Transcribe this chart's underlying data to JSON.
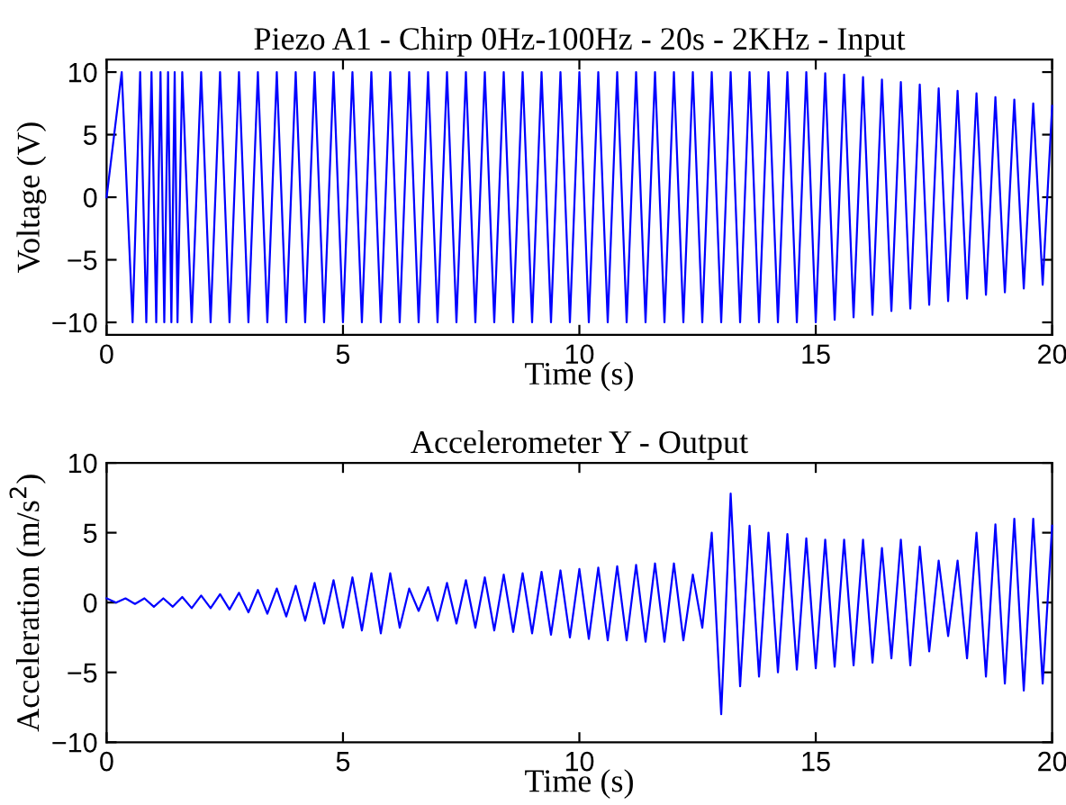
{
  "chart_data": [
    {
      "type": "line",
      "title": "Piezo A1 - Chirp 0Hz-100Hz - 20s - 2KHz - Input",
      "xlabel": "Time (s)",
      "ylabel": "Voltage (V)",
      "xlim": [
        0,
        20
      ],
      "xticks": [
        0,
        5,
        10,
        15,
        20
      ],
      "ylim": [
        -11,
        11
      ],
      "yticks": [
        -10,
        -5,
        0,
        5,
        10
      ],
      "grid": false,
      "legend": false,
      "series": [
        {
          "color": "#0000ff",
          "x": [
            0,
            0.32,
            0.55,
            0.71,
            0.84,
            0.95,
            1.05,
            1.14,
            1.22,
            1.3,
            1.37,
            1.44,
            1.5,
            1.6,
            1.8,
            2.0,
            2.2,
            2.4,
            2.6,
            2.8,
            3.0,
            3.2,
            3.4,
            3.6,
            3.8,
            4.0,
            4.2,
            4.4,
            4.6,
            4.8,
            5.0,
            5.2,
            5.4,
            5.6,
            5.8,
            6.0,
            6.2,
            6.4,
            6.6,
            6.8,
            7.0,
            7.2,
            7.4,
            7.6,
            7.8,
            8.0,
            8.2,
            8.4,
            8.6,
            8.8,
            9.0,
            9.2,
            9.4,
            9.6,
            9.8,
            10.0,
            10.2,
            10.4,
            10.6,
            10.8,
            11.0,
            11.2,
            11.4,
            11.6,
            11.8,
            12.0,
            12.2,
            12.4,
            12.6,
            12.8,
            13.0,
            13.2,
            13.4,
            13.6,
            13.8,
            14.0,
            14.2,
            14.4,
            14.6,
            14.8,
            15.0,
            15.2,
            15.4,
            15.6,
            15.8,
            16.0,
            16.2,
            16.4,
            16.6,
            16.8,
            17.0,
            17.2,
            17.4,
            17.6,
            17.8,
            18.0,
            18.2,
            18.4,
            18.6,
            18.8,
            19.0,
            19.2,
            19.4,
            19.6,
            19.8,
            20.0
          ],
          "values": [
            0,
            10,
            -10,
            10,
            -10,
            10,
            -10,
            10,
            -10,
            10,
            -10,
            10,
            -10,
            10,
            -10,
            10,
            -10,
            10,
            -10,
            10,
            -10,
            10,
            -10,
            10,
            -10,
            10,
            -10,
            10,
            -10,
            10,
            -10,
            10,
            -10,
            10,
            -10,
            10,
            -10,
            10,
            -10,
            10,
            -10,
            10,
            -10,
            10,
            -10,
            10,
            -10,
            10,
            -10,
            10,
            -10,
            10,
            -10,
            10,
            -10,
            10,
            -10,
            10,
            -10,
            10,
            -10,
            10,
            -10,
            10,
            -10,
            10,
            -10,
            10,
            -10,
            10,
            -10,
            10,
            -10,
            10,
            -10,
            10,
            -10,
            10,
            -10,
            10,
            -10,
            9.9,
            -9.8,
            9.8,
            -9.6,
            9.6,
            -9.4,
            9.4,
            -9.1,
            9.2,
            -8.9,
            9.0,
            -8.6,
            8.7,
            -8.3,
            8.5,
            -8.1,
            8.3,
            -7.8,
            8.0,
            -7.6,
            7.8,
            -7.3,
            7.5,
            -7.0,
            7.3
          ]
        }
      ]
    },
    {
      "type": "line",
      "title": "Accelerometer Y - Output",
      "xlabel": "Time (s)",
      "ylabel": "Acceleration (m/s$^{2}$)",
      "xlim": [
        0,
        20
      ],
      "xticks": [
        0,
        5,
        10,
        15,
        20
      ],
      "ylim": [
        -10,
        10
      ],
      "yticks": [
        -10,
        -5,
        0,
        5,
        10
      ],
      "grid": false,
      "legend": false,
      "series": [
        {
          "color": "#0000ff",
          "x": [
            0,
            0.2,
            0.4,
            0.6,
            0.8,
            1.0,
            1.2,
            1.4,
            1.6,
            1.8,
            2.0,
            2.2,
            2.4,
            2.6,
            2.8,
            3.0,
            3.2,
            3.4,
            3.6,
            3.8,
            4.0,
            4.2,
            4.4,
            4.6,
            4.8,
            5.0,
            5.2,
            5.4,
            5.6,
            5.8,
            6.0,
            6.2,
            6.4,
            6.6,
            6.8,
            7.0,
            7.2,
            7.4,
            7.6,
            7.8,
            8.0,
            8.2,
            8.4,
            8.6,
            8.8,
            9.0,
            9.2,
            9.4,
            9.6,
            9.8,
            10.0,
            10.2,
            10.4,
            10.6,
            10.8,
            11.0,
            11.2,
            11.4,
            11.6,
            11.8,
            12.0,
            12.2,
            12.4,
            12.6,
            12.8,
            13.0,
            13.2,
            13.4,
            13.6,
            13.8,
            14.0,
            14.2,
            14.4,
            14.6,
            14.8,
            15.0,
            15.2,
            15.4,
            15.6,
            15.8,
            16.0,
            16.2,
            16.4,
            16.6,
            16.8,
            17.0,
            17.2,
            17.4,
            17.6,
            17.8,
            18.0,
            18.2,
            18.4,
            18.6,
            18.8,
            19.0,
            19.2,
            19.4,
            19.6,
            19.8,
            20.0
          ],
          "values": [
            0.3,
            0,
            0.3,
            -0.1,
            0.3,
            -0.3,
            0.3,
            -0.3,
            0.4,
            -0.4,
            0.5,
            -0.4,
            0.6,
            -0.5,
            0.7,
            -0.7,
            0.9,
            -0.8,
            1.0,
            -1.0,
            1.2,
            -1.3,
            1.4,
            -1.5,
            1.6,
            -1.8,
            1.8,
            -2.0,
            2.1,
            -2.2,
            2.1,
            -1.8,
            1.0,
            -0.6,
            1.1,
            -1.3,
            1.4,
            -1.5,
            1.6,
            -1.8,
            1.8,
            -2.0,
            2.0,
            -2.1,
            2.1,
            -2.2,
            2.2,
            -2.3,
            2.3,
            -2.5,
            2.4,
            -2.6,
            2.5,
            -2.7,
            2.6,
            -2.7,
            2.7,
            -2.8,
            2.8,
            -2.8,
            2.8,
            -2.7,
            2.0,
            -1.8,
            5.0,
            -8.0,
            7.8,
            -6.0,
            5.5,
            -5.3,
            5.0,
            -5.0,
            4.9,
            -4.8,
            4.6,
            -4.7,
            4.5,
            -4.6,
            4.5,
            -4.5,
            4.5,
            -4.3,
            3.9,
            -4.0,
            4.5,
            -4.5,
            4.0,
            -3.5,
            3.0,
            -2.4,
            3.0,
            -4.0,
            5.0,
            -5.3,
            5.6,
            -5.8,
            6.0,
            -6.3,
            6.0,
            -5.8,
            5.5
          ]
        }
      ]
    }
  ]
}
